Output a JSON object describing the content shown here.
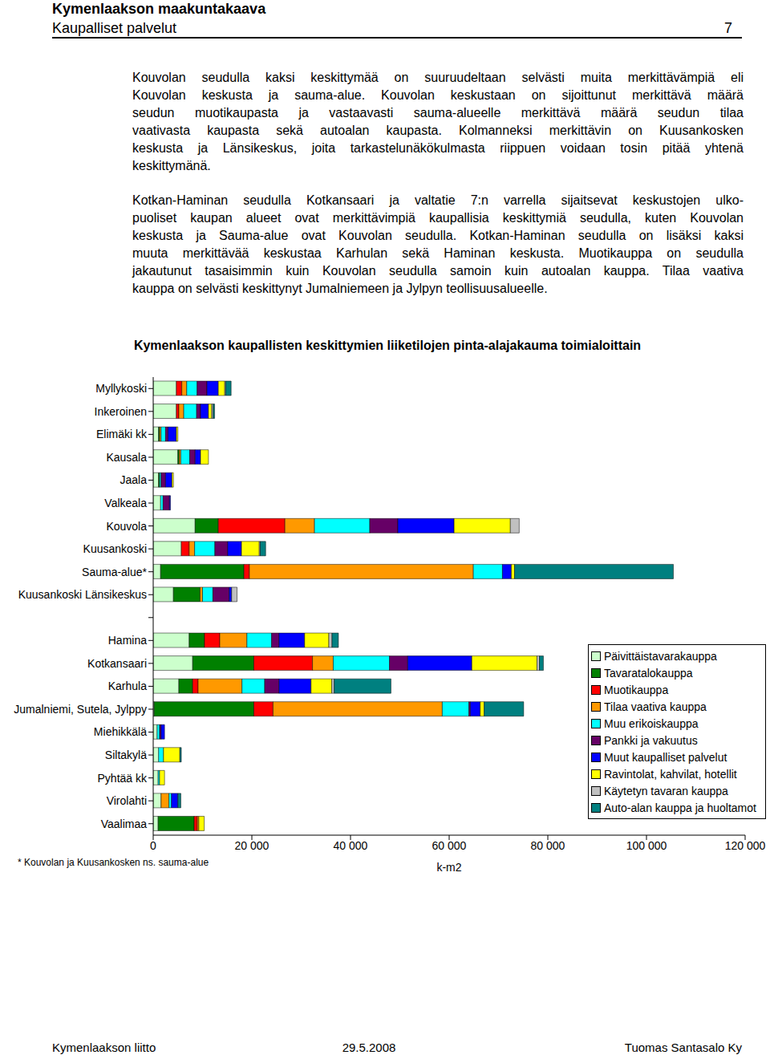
{
  "header": {
    "title": "Kymenlaakson maakuntakaava",
    "subtitle": "Kaupalliset palvelut",
    "page": "7"
  },
  "paragraphs": [
    [
      "Kouvolan seudulla kaksi keskittymää on suuruudeltaan selvästi muita merkittävämpiä eli",
      "Kouvolan keskusta ja sauma-alue. Kouvolan keskustaan on sijoittunut merkittävä määrä",
      "seudun muotikaupasta ja vastaavasti sauma-alueelle merkittävä määrä seudun tilaa",
      "vaativasta kaupasta sekä autoalan kaupasta. Kolmanneksi merkittävin on Kuusankosken",
      "keskusta ja Länsikeskus, joita tarkastelunäkökulmasta riippuen voidaan tosin pitää yhtenä",
      "keskittymänä."
    ],
    [
      "Kotkan-Haminan seudulla Kotkansaari ja valtatie 7:n varrella sijaitsevat keskustojen ulko-",
      "puoliset kaupan alueet ovat merkittävimpiä kaupallisia keskittymiä seudulla, kuten Kouvolan",
      "keskusta ja Sauma-alue ovat Kouvolan seudulla. Kotkan-Haminan seudulla on lisäksi kaksi",
      "muuta merkittävää keskustaa Karhulan sekä Haminan keskusta. Muotikauppa on seudulla",
      "jakautunut tasaisimmin kuin Kouvolan seudulla samoin kuin autoalan kauppa. Tilaa vaativa",
      "kauppa on selvästi keskittynyt Jumalniemeen ja Jylpyn teollisuusalueelle."
    ]
  ],
  "chart_data": {
    "type": "bar",
    "title": "Kymenlaakson kaupallisten keskittymien liiketilojen pinta-alajakauma toimialoittain",
    "orientation": "horizontal",
    "stacked": true,
    "legend": "right",
    "xlabel": "k-m2",
    "annotations": [
      "* Kouvolan ja Kuusankosken ns. sauma-alue"
    ],
    "xlim": [
      0,
      120000
    ],
    "xticks": [
      0,
      {
        "value": 20000,
        "label": "20 000"
      },
      {
        "value": 40000,
        "label": "40 000"
      },
      {
        "value": 60000,
        "label": "60 000"
      },
      {
        "value": 80000,
        "label": "80 000"
      },
      {
        "value": 100000,
        "label": "100 000"
      },
      {
        "value": 120000,
        "label": "120 000"
      }
    ],
    "categories": [
      "Myllykoski",
      "Inkeroinen",
      "Elimäki kk",
      "Kausala",
      "Jaala",
      "Valkeala",
      "Kouvola",
      "Kuusankoski",
      "Sauma-alue*",
      "Kuusankoski Länsikeskus",
      null,
      "Hamina",
      "Kotkansaari",
      "Karhula",
      "Jumalniemi, Sutela, Jylppy",
      "Miehikkälä",
      "Siltakylä",
      "Pyhtää kk",
      "Virolahti",
      "Vaalimaa"
    ],
    "series": [
      {
        "name": "Päivittäistavarakauppa",
        "color": "#ccffcc",
        "values": [
          4700,
          4700,
          1100,
          5000,
          1100,
          1500,
          8500,
          5700,
          1500,
          4100,
          null,
          7300,
          8000,
          5200,
          200,
          800,
          1100,
          1000,
          1600,
          1000
        ]
      },
      {
        "name": "Tavaratalokauppa",
        "color": "#008000",
        "values": [
          0,
          0,
          200,
          300,
          200,
          0,
          4700,
          0,
          16900,
          5400,
          null,
          3100,
          12400,
          2800,
          20200,
          0,
          0,
          0,
          0,
          7300
        ]
      },
      {
        "name": "Muotikauppa",
        "color": "#ff0000",
        "values": [
          1100,
          500,
          0,
          0,
          0,
          0,
          13500,
          1600,
          1100,
          0,
          null,
          3100,
          11900,
          1100,
          3900,
          0,
          0,
          0,
          0,
          650
        ]
      },
      {
        "name": "Tilaa vaativa kauppa",
        "color": "#ff9900",
        "values": [
          1000,
          1000,
          300,
          300,
          0,
          0,
          6000,
          1100,
          45400,
          500,
          null,
          5500,
          4200,
          8900,
          34300,
          0,
          0,
          0,
          1600,
          300
        ]
      },
      {
        "name": "Muu erikoiskauppa",
        "color": "#00ffff",
        "values": [
          2100,
          2600,
          900,
          1800,
          300,
          500,
          11200,
          4100,
          5900,
          2100,
          null,
          5000,
          11400,
          4600,
          5400,
          500,
          1000,
          300,
          500,
          0
        ]
      },
      {
        "name": "Pankki ja vakuutus",
        "color": "#660066",
        "values": [
          2000,
          800,
          500,
          1100,
          900,
          1300,
          5700,
          2600,
          0,
          3300,
          null,
          1500,
          3700,
          2900,
          300,
          300,
          0,
          0,
          0,
          0
        ]
      },
      {
        "name": "Muut kaupalliset palvelut",
        "color": "#0000ff",
        "values": [
          2300,
          1600,
          1700,
          1100,
          1300,
          200,
          11400,
          2800,
          1800,
          500,
          null,
          5200,
          13000,
          6500,
          2000,
          700,
          0,
          0,
          1300,
          0
        ]
      },
      {
        "name": "Ravintolat, kahvilat, hotellit",
        "color": "#ffff00",
        "values": [
          1300,
          650,
          300,
          1600,
          300,
          0,
          11400,
          3600,
          650,
          0,
          null,
          4900,
          13200,
          4200,
          800,
          0,
          3300,
          1000,
          0,
          1100
        ]
      },
      {
        "name": "Käytetyn tavaran kauppa",
        "color": "#c0c0c0",
        "values": [
          200,
          300,
          0,
          0,
          0,
          0,
          1800,
          200,
          0,
          1100,
          null,
          650,
          500,
          500,
          0,
          0,
          0,
          0,
          0,
          0
        ]
      },
      {
        "name": "Auto-alan kauppa ja huoltamot",
        "color": "#008080",
        "values": [
          1100,
          300,
          0,
          0,
          0,
          0,
          0,
          1100,
          32200,
          0,
          null,
          1300,
          800,
          11500,
          8000,
          0,
          300,
          0,
          600,
          0
        ]
      }
    ]
  },
  "footer": {
    "left": "Kymenlaakson liitto",
    "center": "29.5.2008",
    "right": "Tuomas Santasalo Ky"
  }
}
